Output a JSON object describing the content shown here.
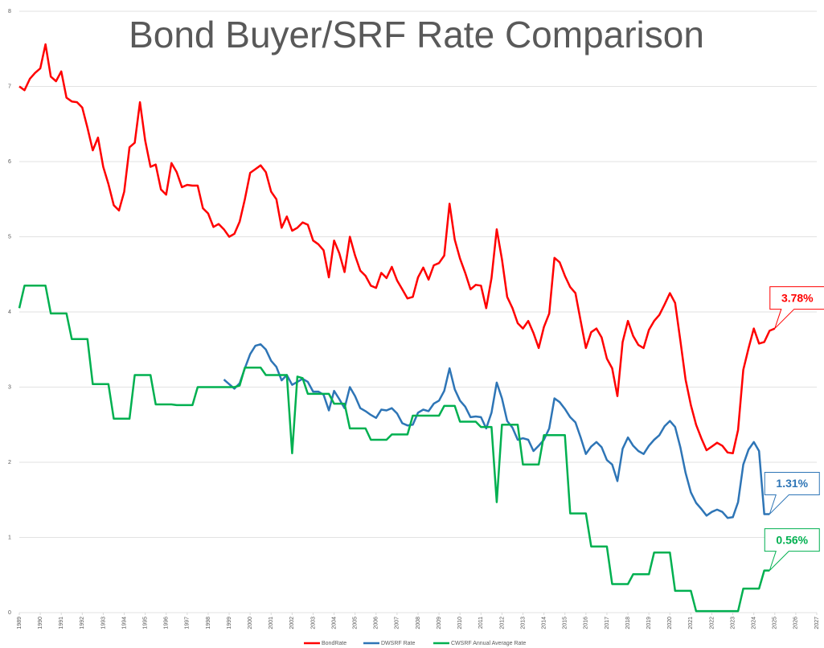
{
  "chart_data": {
    "type": "line",
    "title": "Bond Buyer/SRF Rate Comparison",
    "x": [
      1989,
      1989.25,
      1989.5,
      1989.75,
      1990,
      1990.25,
      1990.5,
      1990.75,
      1991,
      1991.25,
      1991.5,
      1991.75,
      1992,
      1992.25,
      1992.5,
      1992.75,
      1993,
      1993.25,
      1993.5,
      1993.75,
      1994,
      1994.25,
      1994.5,
      1994.75,
      1995,
      1995.25,
      1995.5,
      1995.75,
      1996,
      1996.25,
      1996.5,
      1996.75,
      1997,
      1997.25,
      1997.5,
      1997.75,
      1998,
      1998.25,
      1998.5,
      1998.75,
      1999,
      1999.25,
      1999.5,
      1999.75,
      2000,
      2000.25,
      2000.5,
      2000.75,
      2001,
      2001.25,
      2001.5,
      2001.75,
      2002,
      2002.25,
      2002.5,
      2002.75,
      2003,
      2003.25,
      2003.5,
      2003.75,
      2004,
      2004.25,
      2004.5,
      2004.75,
      2005,
      2005.25,
      2005.5,
      2005.75,
      2006,
      2006.25,
      2006.5,
      2006.75,
      2007,
      2007.25,
      2007.5,
      2007.75,
      2008,
      2008.25,
      2008.5,
      2008.75,
      2009,
      2009.25,
      2009.5,
      2009.75,
      2010,
      2010.25,
      2010.5,
      2010.75,
      2011,
      2011.25,
      2011.5,
      2011.75,
      2012,
      2012.25,
      2012.5,
      2012.75,
      2013,
      2013.25,
      2013.5,
      2013.75,
      2014,
      2014.25,
      2014.5,
      2014.75,
      2015,
      2015.25,
      2015.5,
      2015.75,
      2016,
      2016.25,
      2016.5,
      2016.75,
      2017,
      2017.25,
      2017.5,
      2017.75,
      2018,
      2018.25,
      2018.5,
      2018.75,
      2019,
      2019.25,
      2019.5,
      2019.75,
      2020,
      2020.25,
      2020.5,
      2020.75,
      2021,
      2021.25,
      2021.5,
      2021.75,
      2022,
      2022.25,
      2022.5,
      2022.75,
      2023,
      2023.25,
      2023.5,
      2023.75,
      2024,
      2024.25,
      2024.5,
      2024.75,
      2025
    ],
    "series": [
      {
        "name": "BondRate",
        "color": "#ff0000",
        "label": "3.78%",
        "values": [
          7.0,
          6.95,
          7.1,
          7.18,
          7.24,
          7.56,
          7.13,
          7.07,
          7.2,
          6.85,
          6.8,
          6.79,
          6.72,
          6.45,
          6.15,
          6.32,
          5.93,
          5.7,
          5.42,
          5.35,
          5.6,
          6.19,
          6.25,
          6.79,
          6.28,
          5.93,
          5.96,
          5.63,
          5.56,
          5.98,
          5.86,
          5.66,
          5.69,
          5.68,
          5.68,
          5.38,
          5.31,
          5.13,
          5.17,
          5.1,
          5.0,
          5.04,
          5.2,
          5.5,
          5.85,
          5.9,
          5.95,
          5.86,
          5.6,
          5.5,
          5.12,
          5.27,
          5.08,
          5.12,
          5.19,
          5.16,
          4.95,
          4.9,
          4.82,
          4.46,
          4.95,
          4.78,
          4.53,
          5.0,
          4.75,
          4.55,
          4.48,
          4.35,
          4.32,
          4.52,
          4.45,
          4.6,
          4.42,
          4.3,
          4.18,
          4.2,
          4.46,
          4.59,
          4.43,
          4.62,
          4.65,
          4.75,
          5.44,
          4.96,
          4.71,
          4.52,
          4.3,
          4.36,
          4.35,
          4.05,
          4.45,
          5.1,
          4.7,
          4.2,
          4.05,
          3.85,
          3.78,
          3.88,
          3.72,
          3.52,
          3.8,
          3.98,
          4.72,
          4.66,
          4.48,
          4.33,
          4.25,
          3.88,
          3.52,
          3.73,
          3.78,
          3.66,
          3.38,
          3.25,
          2.88,
          3.6,
          3.88,
          3.68,
          3.56,
          3.52,
          3.76,
          3.88,
          3.96,
          4.1,
          4.25,
          4.12,
          3.62,
          3.1,
          2.76,
          2.5,
          2.32,
          2.16,
          2.21,
          2.26,
          2.22,
          2.13,
          2.12,
          2.43,
          3.23,
          3.52,
          3.78,
          3.58,
          3.6,
          3.75,
          3.78
        ]
      },
      {
        "name": "DWSRF Rate",
        "color": "#2e75b6",
        "label": "1.31%",
        "values": [
          null,
          null,
          null,
          null,
          null,
          null,
          null,
          null,
          null,
          null,
          null,
          null,
          null,
          null,
          null,
          null,
          null,
          null,
          null,
          null,
          null,
          null,
          null,
          null,
          null,
          null,
          null,
          null,
          null,
          null,
          null,
          null,
          null,
          null,
          null,
          null,
          null,
          null,
          null,
          3.1,
          3.04,
          2.98,
          3.05,
          3.25,
          3.44,
          3.55,
          3.57,
          3.5,
          3.35,
          3.27,
          3.09,
          3.16,
          3.03,
          3.07,
          3.11,
          3.07,
          2.94,
          2.94,
          2.9,
          2.69,
          2.95,
          2.84,
          2.72,
          3.0,
          2.88,
          2.72,
          2.68,
          2.63,
          2.59,
          2.7,
          2.69,
          2.72,
          2.65,
          2.52,
          2.49,
          2.5,
          2.66,
          2.7,
          2.68,
          2.78,
          2.82,
          2.95,
          3.25,
          2.97,
          2.82,
          2.74,
          2.6,
          2.61,
          2.6,
          2.45,
          2.66,
          3.06,
          2.85,
          2.55,
          2.46,
          2.3,
          2.32,
          2.3,
          2.15,
          2.22,
          2.3,
          2.45,
          2.85,
          2.8,
          2.71,
          2.6,
          2.53,
          2.33,
          2.11,
          2.21,
          2.27,
          2.2,
          2.03,
          1.97,
          1.75,
          2.18,
          2.33,
          2.22,
          2.15,
          2.11,
          2.22,
          2.3,
          2.36,
          2.48,
          2.55,
          2.47,
          2.2,
          1.86,
          1.6,
          1.46,
          1.38,
          1.29,
          1.34,
          1.37,
          1.34,
          1.26,
          1.27,
          1.47,
          1.97,
          2.17,
          2.27,
          2.15,
          1.31,
          1.31,
          null
        ]
      },
      {
        "name": "CWSRF Annual Average Rate",
        "color": "#00b050",
        "label": "0.56%",
        "values": [
          4.05,
          4.35,
          4.35,
          4.35,
          4.35,
          4.35,
          3.98,
          3.98,
          3.98,
          3.98,
          3.64,
          3.64,
          3.64,
          3.64,
          3.04,
          3.04,
          3.04,
          3.04,
          2.58,
          2.58,
          2.58,
          2.58,
          3.16,
          3.16,
          3.16,
          3.16,
          2.77,
          2.77,
          2.77,
          2.77,
          2.76,
          2.76,
          2.76,
          2.76,
          3.0,
          3.0,
          3.0,
          3.0,
          3.0,
          3.0,
          3.0,
          3.0,
          3.02,
          3.26,
          3.26,
          3.26,
          3.26,
          3.16,
          3.16,
          3.16,
          3.16,
          3.16,
          2.12,
          3.14,
          3.12,
          2.91,
          2.91,
          2.91,
          2.91,
          2.91,
          2.78,
          2.78,
          2.78,
          2.45,
          2.45,
          2.45,
          2.45,
          2.3,
          2.3,
          2.3,
          2.3,
          2.37,
          2.37,
          2.37,
          2.37,
          2.62,
          2.62,
          2.62,
          2.62,
          2.62,
          2.62,
          2.75,
          2.75,
          2.75,
          2.54,
          2.54,
          2.54,
          2.54,
          2.47,
          2.47,
          2.47,
          1.47,
          2.5,
          2.5,
          2.5,
          2.5,
          1.97,
          1.97,
          1.97,
          1.97,
          2.36,
          2.36,
          2.36,
          2.36,
          2.36,
          1.32,
          1.32,
          1.32,
          1.32,
          0.88,
          0.88,
          0.88,
          0.88,
          0.38,
          0.38,
          0.38,
          0.38,
          0.51,
          0.51,
          0.51,
          0.51,
          0.8,
          0.8,
          0.8,
          0.8,
          0.29,
          0.29,
          0.29,
          0.29,
          0.02,
          0.02,
          0.02,
          0.02,
          0.02,
          0.02,
          0.02,
          0.02,
          0.02,
          0.32,
          0.32,
          0.32,
          0.32,
          0.56,
          0.56,
          null
        ]
      }
    ],
    "xlim": [
      1989,
      2027
    ],
    "xticks": [
      1989,
      1990,
      1991,
      1992,
      1993,
      1994,
      1995,
      1996,
      1997,
      1998,
      1999,
      2000,
      2001,
      2002,
      2003,
      2004,
      2005,
      2006,
      2007,
      2008,
      2009,
      2010,
      2011,
      2012,
      2013,
      2014,
      2015,
      2016,
      2017,
      2018,
      2019,
      2020,
      2021,
      2022,
      2023,
      2024,
      2025,
      2026,
      2027
    ],
    "ylim": [
      0,
      8
    ],
    "yticks": [
      0,
      1,
      2,
      3,
      4,
      5,
      6,
      7,
      8
    ],
    "grid": true,
    "legend": "bottom"
  }
}
